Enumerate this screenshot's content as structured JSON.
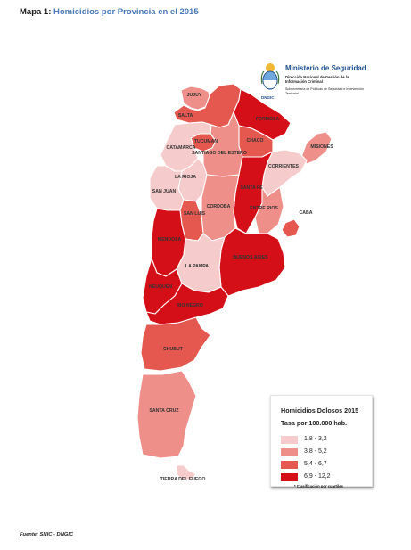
{
  "header": {
    "title_prefix": "Mapa 1: ",
    "title_main": "Homicidios por Provincia en el 2015"
  },
  "logo": {
    "ministry": "Ministerio de Seguridad",
    "sub1": "Dirección Nacional de Gestión de la Información Criminal",
    "sub2": "Subsecretaría de Políticas de Seguridad e Intervención Territorial",
    "short": "DNGIC",
    "emblem_icon": "argentina-coat-of-arms-icon"
  },
  "colors": {
    "class1": "#f6cbcb",
    "class2": "#ee8f8a",
    "class3": "#e4584f",
    "class4": "#d40f18"
  },
  "provinces": [
    {
      "id": "jujuy",
      "label": "JUJUY",
      "class": 2
    },
    {
      "id": "salta",
      "label": "SALTA",
      "class": 3
    },
    {
      "id": "formosa",
      "label": "FORMOSA",
      "class": 4
    },
    {
      "id": "tucuman",
      "label": "TUCUMAN",
      "class": 3
    },
    {
      "id": "chaco",
      "label": "CHACO",
      "class": 3
    },
    {
      "id": "misiones",
      "label": "MISIONES",
      "class": 2
    },
    {
      "id": "catamarca",
      "label": "CATAMARCA",
      "class": 1
    },
    {
      "id": "santiago",
      "label": "SANTIAGO DEL ESTERO",
      "class": 2
    },
    {
      "id": "corrientes",
      "label": "CORRIENTES",
      "class": 1
    },
    {
      "id": "larioja",
      "label": "LA RIOJA",
      "class": 1
    },
    {
      "id": "santafe",
      "label": "SANTA FE",
      "class": 4
    },
    {
      "id": "sanjuan",
      "label": "SAN JUAN",
      "class": 1
    },
    {
      "id": "cordoba",
      "label": "CORDOBA",
      "class": 2
    },
    {
      "id": "entrerios",
      "label": "ENTRE RIOS",
      "class": 2
    },
    {
      "id": "sanluis",
      "label": "SAN LUIS",
      "class": 3
    },
    {
      "id": "caba",
      "label": "CABA",
      "class": 3
    },
    {
      "id": "mendoza",
      "label": "MENDOZA",
      "class": 4
    },
    {
      "id": "buenosaires",
      "label": "BUENOS AIRES",
      "class": 4
    },
    {
      "id": "lapampa",
      "label": "LA PAMPA",
      "class": 1
    },
    {
      "id": "neuquen",
      "label": "NEUQUEN",
      "class": 4
    },
    {
      "id": "rionegro",
      "label": "RIO NEGRO",
      "class": 4
    },
    {
      "id": "chubut",
      "label": "CHUBUT",
      "class": 3
    },
    {
      "id": "santacruz",
      "label": "SANTA CRUZ",
      "class": 2
    },
    {
      "id": "tierradelfuego",
      "label": "TIERRA DEL FUEGO",
      "class": 1
    }
  ],
  "legend": {
    "title": "Homicidios Dolosos 2015",
    "subtitle": "Tasa por 100.000 hab.",
    "items": [
      {
        "label": "1,8 - 3,2",
        "class": 1
      },
      {
        "label": "3,8 - 5,2",
        "class": 2
      },
      {
        "label": "5,4 - 6,7",
        "class": 3
      },
      {
        "label": "6,9 - 12,2",
        "class": 4
      }
    ],
    "note": "* Clasificación por cuartiles"
  },
  "footer": {
    "source": "Fuente: SNIC - DNGIC"
  }
}
